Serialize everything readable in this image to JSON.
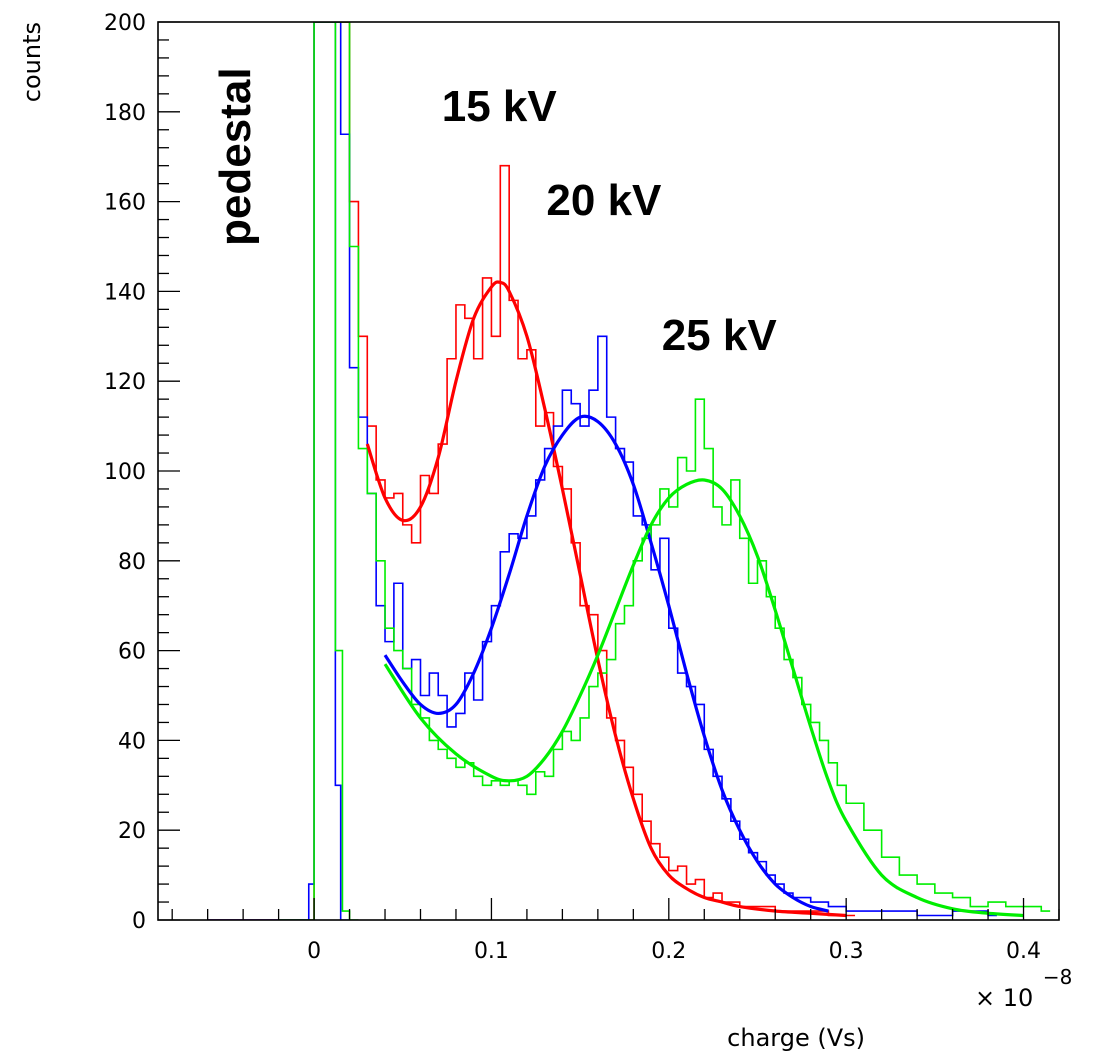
{
  "chart_data": {
    "type": "line",
    "xlabel": "charge (Vs)",
    "ylabel": "counts",
    "x_multiplier_label": "× 10",
    "x_multiplier_exponent": "−8",
    "xlim": [
      -0.088,
      0.42
    ],
    "ylim": [
      0,
      200
    ],
    "x_ticks": [
      0,
      0.1,
      0.2,
      0.3,
      0.4
    ],
    "x_tick_labels": [
      "0",
      "0.1",
      "0.2",
      "0.3",
      "0.4"
    ],
    "y_ticks": [
      0,
      20,
      40,
      60,
      80,
      100,
      120,
      140,
      160,
      180,
      200
    ],
    "y_tick_labels": [
      "0",
      "20",
      "40",
      "60",
      "80",
      "100",
      "120",
      "140",
      "160",
      "180",
      "200"
    ],
    "grid": false,
    "annotations": [
      {
        "text": "pedestal",
        "x": -0.036,
        "y": 170,
        "rotate": -90
      },
      {
        "text": "15 kV",
        "x": 0.072,
        "y": 178
      },
      {
        "text": "20 kV",
        "x": 0.131,
        "y": 157
      },
      {
        "text": "25  kV",
        "x": 0.196,
        "y": 127
      }
    ],
    "series": [
      {
        "color": "#ff0000",
        "fit_x": [
          0.03,
          0.04,
          0.05,
          0.06,
          0.07,
          0.08,
          0.09,
          0.1,
          0.105,
          0.11,
          0.12,
          0.13,
          0.14,
          0.15,
          0.16,
          0.17,
          0.18,
          0.19,
          0.2,
          0.21,
          0.22,
          0.23,
          0.24,
          0.26,
          0.28,
          0.3
        ],
        "fit_y": [
          106,
          94,
          89,
          92,
          103,
          120,
          134,
          141,
          142,
          140,
          130,
          114,
          96,
          77,
          58,
          41,
          27,
          16,
          10,
          7,
          5,
          4,
          3,
          2,
          1.5,
          1
        ],
        "hist_points": [
          [
            0.015,
            200
          ],
          [
            0.02,
            160
          ],
          [
            0.025,
            130
          ],
          [
            0.03,
            110
          ],
          [
            0.035,
            98
          ],
          [
            0.04,
            94
          ],
          [
            0.045,
            95
          ],
          [
            0.05,
            88
          ],
          [
            0.055,
            84
          ],
          [
            0.06,
            99
          ],
          [
            0.065,
            95
          ],
          [
            0.07,
            106
          ],
          [
            0.075,
            125
          ],
          [
            0.08,
            137
          ],
          [
            0.085,
            134
          ],
          [
            0.09,
            125
          ],
          [
            0.095,
            143
          ],
          [
            0.1,
            130
          ],
          [
            0.105,
            168
          ],
          [
            0.11,
            138
          ],
          [
            0.115,
            125
          ],
          [
            0.12,
            127
          ],
          [
            0.125,
            110
          ],
          [
            0.13,
            113
          ],
          [
            0.135,
            101
          ],
          [
            0.14,
            96
          ],
          [
            0.145,
            84
          ],
          [
            0.15,
            70
          ],
          [
            0.155,
            68
          ],
          [
            0.16,
            60
          ],
          [
            0.165,
            45
          ],
          [
            0.17,
            40
          ],
          [
            0.175,
            34
          ],
          [
            0.18,
            28
          ],
          [
            0.185,
            22
          ],
          [
            0.19,
            17
          ],
          [
            0.195,
            14
          ],
          [
            0.2,
            11
          ],
          [
            0.205,
            12
          ],
          [
            0.21,
            8
          ],
          [
            0.215,
            9
          ],
          [
            0.22,
            5
          ],
          [
            0.225,
            6
          ],
          [
            0.23,
            4
          ],
          [
            0.235,
            4
          ],
          [
            0.24,
            3
          ],
          [
            0.25,
            3
          ],
          [
            0.26,
            2
          ],
          [
            0.27,
            2
          ],
          [
            0.28,
            2
          ],
          [
            0.29,
            1
          ],
          [
            0.3,
            1
          ]
        ]
      },
      {
        "color": "#0000ff",
        "fit_x": [
          0.04,
          0.05,
          0.06,
          0.07,
          0.08,
          0.09,
          0.1,
          0.11,
          0.12,
          0.13,
          0.14,
          0.15,
          0.16,
          0.17,
          0.18,
          0.19,
          0.2,
          0.21,
          0.22,
          0.23,
          0.24,
          0.25,
          0.26,
          0.27,
          0.28,
          0.29
        ],
        "fit_y": [
          59,
          53,
          48,
          46,
          48,
          55,
          65,
          77,
          90,
          101,
          108,
          112,
          111,
          106,
          97,
          84,
          70,
          55,
          41,
          29,
          20,
          13,
          8,
          5,
          3,
          2
        ],
        "hist_points": [
          [
            0.01,
            200
          ],
          [
            0.015,
            175
          ],
          [
            0.02,
            123
          ],
          [
            0.025,
            112
          ],
          [
            0.03,
            95
          ],
          [
            0.035,
            70
          ],
          [
            0.04,
            62
          ],
          [
            0.045,
            75
          ],
          [
            0.05,
            56
          ],
          [
            0.055,
            58
          ],
          [
            0.06,
            50
          ],
          [
            0.065,
            55
          ],
          [
            0.07,
            50
          ],
          [
            0.075,
            43
          ],
          [
            0.08,
            46
          ],
          [
            0.085,
            55
          ],
          [
            0.09,
            49
          ],
          [
            0.095,
            62
          ],
          [
            0.1,
            70
          ],
          [
            0.105,
            82
          ],
          [
            0.11,
            86
          ],
          [
            0.115,
            85
          ],
          [
            0.12,
            90
          ],
          [
            0.125,
            98
          ],
          [
            0.13,
            105
          ],
          [
            0.135,
            110
          ],
          [
            0.14,
            118
          ],
          [
            0.145,
            115
          ],
          [
            0.15,
            110
          ],
          [
            0.155,
            118
          ],
          [
            0.16,
            130
          ],
          [
            0.165,
            112
          ],
          [
            0.17,
            105
          ],
          [
            0.175,
            102
          ],
          [
            0.18,
            90
          ],
          [
            0.185,
            88
          ],
          [
            0.19,
            78
          ],
          [
            0.195,
            85
          ],
          [
            0.2,
            65
          ],
          [
            0.205,
            55
          ],
          [
            0.21,
            52
          ],
          [
            0.215,
            48
          ],
          [
            0.22,
            38
          ],
          [
            0.225,
            32
          ],
          [
            0.23,
            27
          ],
          [
            0.235,
            22
          ],
          [
            0.24,
            18
          ],
          [
            0.245,
            15
          ],
          [
            0.25,
            13
          ],
          [
            0.255,
            10
          ],
          [
            0.26,
            8
          ],
          [
            0.265,
            6
          ],
          [
            0.27,
            5
          ],
          [
            0.28,
            4
          ],
          [
            0.29,
            3
          ],
          [
            0.3,
            2
          ],
          [
            0.32,
            2
          ],
          [
            0.34,
            1
          ],
          [
            0.36,
            2
          ],
          [
            0.38,
            1
          ]
        ]
      },
      {
        "color": "#00ee00",
        "fit_x": [
          0.04,
          0.06,
          0.08,
          0.1,
          0.11,
          0.12,
          0.13,
          0.14,
          0.15,
          0.16,
          0.17,
          0.18,
          0.19,
          0.2,
          0.21,
          0.22,
          0.23,
          0.24,
          0.25,
          0.26,
          0.27,
          0.28,
          0.29,
          0.3,
          0.32,
          0.34,
          0.36,
          0.38,
          0.4
        ],
        "fit_y": [
          57,
          45,
          37,
          32,
          31,
          32,
          36,
          42,
          50,
          59,
          69,
          79,
          88,
          94,
          97,
          98,
          96,
          90,
          81,
          69,
          56,
          43,
          31,
          22,
          10,
          5,
          2.5,
          1.5,
          1
        ],
        "hist_points": [
          [
            0.01,
            200
          ],
          [
            0.015,
            200
          ],
          [
            0.02,
            150
          ],
          [
            0.025,
            105
          ],
          [
            0.03,
            95
          ],
          [
            0.035,
            80
          ],
          [
            0.04,
            65
          ],
          [
            0.045,
            60
          ],
          [
            0.05,
            56
          ],
          [
            0.055,
            48
          ],
          [
            0.06,
            45
          ],
          [
            0.065,
            40
          ],
          [
            0.07,
            38
          ],
          [
            0.075,
            36
          ],
          [
            0.08,
            34
          ],
          [
            0.085,
            35
          ],
          [
            0.09,
            32
          ],
          [
            0.095,
            30
          ],
          [
            0.1,
            31
          ],
          [
            0.105,
            30
          ],
          [
            0.11,
            31
          ],
          [
            0.115,
            30
          ],
          [
            0.12,
            28
          ],
          [
            0.125,
            33
          ],
          [
            0.13,
            32
          ],
          [
            0.135,
            38
          ],
          [
            0.14,
            42
          ],
          [
            0.145,
            40
          ],
          [
            0.15,
            45
          ],
          [
            0.155,
            52
          ],
          [
            0.16,
            55
          ],
          [
            0.165,
            58
          ],
          [
            0.17,
            66
          ],
          [
            0.175,
            70
          ],
          [
            0.18,
            80
          ],
          [
            0.185,
            85
          ],
          [
            0.19,
            88
          ],
          [
            0.195,
            96
          ],
          [
            0.2,
            92
          ],
          [
            0.205,
            103
          ],
          [
            0.21,
            100
          ],
          [
            0.215,
            116
          ],
          [
            0.22,
            105
          ],
          [
            0.225,
            92
          ],
          [
            0.23,
            88
          ],
          [
            0.235,
            98
          ],
          [
            0.24,
            85
          ],
          [
            0.245,
            75
          ],
          [
            0.25,
            80
          ],
          [
            0.255,
            72
          ],
          [
            0.26,
            65
          ],
          [
            0.265,
            58
          ],
          [
            0.27,
            54
          ],
          [
            0.275,
            48
          ],
          [
            0.28,
            44
          ],
          [
            0.285,
            40
          ],
          [
            0.29,
            35
          ],
          [
            0.295,
            30
          ],
          [
            0.3,
            26
          ],
          [
            0.31,
            20
          ],
          [
            0.32,
            14
          ],
          [
            0.33,
            10
          ],
          [
            0.34,
            8
          ],
          [
            0.35,
            6
          ],
          [
            0.36,
            5
          ],
          [
            0.37,
            3
          ],
          [
            0.38,
            4
          ],
          [
            0.39,
            3
          ],
          [
            0.4,
            3
          ],
          [
            0.41,
            2
          ]
        ]
      }
    ],
    "pedestal_spikes": [
      {
        "color": "#ff0000",
        "points": [
          [
            -0.06,
            0
          ],
          [
            -0.01,
            0
          ],
          [
            -0.002,
            0
          ],
          [
            0.0,
            200
          ],
          [
            0.006,
            200
          ],
          [
            0.009,
            200
          ],
          [
            0.012,
            200
          ],
          [
            0.015,
            200
          ]
        ]
      },
      {
        "color": "#0000ff",
        "points": [
          [
            -0.06,
            0
          ],
          [
            -0.005,
            0
          ],
          [
            -0.003,
            8
          ],
          [
            0.0,
            200
          ],
          [
            0.006,
            200
          ],
          [
            0.009,
            200
          ],
          [
            0.012,
            30
          ],
          [
            0.015,
            0
          ]
        ]
      },
      {
        "color": "#00ee00",
        "points": [
          [
            -0.02,
            0
          ],
          [
            -0.003,
            0
          ],
          [
            0.0,
            200
          ],
          [
            0.006,
            200
          ],
          [
            0.009,
            200
          ],
          [
            0.012,
            60
          ],
          [
            0.016,
            2
          ],
          [
            0.02,
            0
          ]
        ]
      }
    ]
  }
}
